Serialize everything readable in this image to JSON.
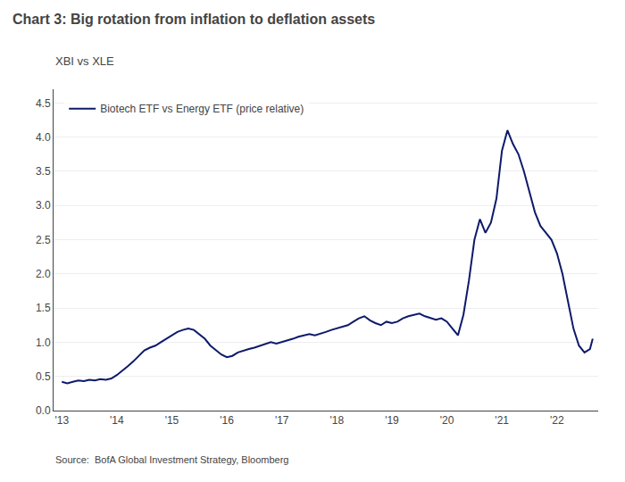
{
  "chart_data": {
    "type": "line",
    "title": "Chart 3: Big rotation from inflation to deflation assets",
    "subtitle": "XBI vs XLE",
    "source": "Source:  BofA Global Investment Strategy, Bloomberg",
    "x": [
      2013.0,
      2013.1,
      2013.2,
      2013.3,
      2013.4,
      2013.5,
      2013.6,
      2013.7,
      2013.8,
      2013.9,
      2014.0,
      2014.1,
      2014.2,
      2014.3,
      2014.4,
      2014.5,
      2014.6,
      2014.7,
      2014.8,
      2014.9,
      2015.0,
      2015.1,
      2015.2,
      2015.3,
      2015.4,
      2015.5,
      2015.6,
      2015.7,
      2015.8,
      2015.9,
      2016.0,
      2016.1,
      2016.2,
      2016.3,
      2016.4,
      2016.5,
      2016.6,
      2016.7,
      2016.8,
      2016.9,
      2017.0,
      2017.1,
      2017.2,
      2017.3,
      2017.4,
      2017.5,
      2017.6,
      2017.7,
      2017.8,
      2017.9,
      2018.0,
      2018.1,
      2018.2,
      2018.3,
      2018.4,
      2018.5,
      2018.6,
      2018.7,
      2018.8,
      2018.9,
      2019.0,
      2019.1,
      2019.2,
      2019.3,
      2019.4,
      2019.5,
      2019.6,
      2019.7,
      2019.8,
      2019.9,
      2020.0,
      2020.1,
      2020.2,
      2020.3,
      2020.4,
      2020.5,
      2020.6,
      2020.7,
      2020.8,
      2020.9,
      2021.0,
      2021.1,
      2021.2,
      2021.3,
      2021.4,
      2021.5,
      2021.6,
      2021.7,
      2021.8,
      2021.9,
      2022.0,
      2022.1,
      2022.2,
      2022.3,
      2022.4,
      2022.5,
      2022.6,
      2022.65
    ],
    "series": [
      {
        "name": "Biotech ETF vs Energy ETF (price relative)",
        "color": "#0d1a6b",
        "values": [
          0.42,
          0.4,
          0.42,
          0.44,
          0.43,
          0.45,
          0.44,
          0.46,
          0.45,
          0.47,
          0.52,
          0.58,
          0.65,
          0.72,
          0.8,
          0.88,
          0.92,
          0.95,
          1.0,
          1.05,
          1.1,
          1.15,
          1.18,
          1.2,
          1.18,
          1.12,
          1.05,
          0.95,
          0.88,
          0.82,
          0.78,
          0.8,
          0.85,
          0.88,
          0.9,
          0.92,
          0.95,
          0.97,
          1.0,
          0.98,
          1.0,
          1.02,
          1.05,
          1.08,
          1.1,
          1.12,
          1.1,
          1.12,
          1.15,
          1.18,
          1.2,
          1.22,
          1.25,
          1.3,
          1.35,
          1.38,
          1.32,
          1.28,
          1.25,
          1.3,
          1.28,
          1.3,
          1.35,
          1.38,
          1.4,
          1.42,
          1.38,
          1.35,
          1.33,
          1.35,
          1.3,
          1.2,
          1.1,
          1.4,
          1.9,
          2.5,
          2.8,
          2.6,
          2.75,
          3.1,
          3.8,
          4.1,
          3.9,
          3.75,
          3.5,
          3.2,
          2.9,
          2.7,
          2.6,
          2.5,
          2.3,
          2.0,
          1.6,
          1.2,
          0.95,
          0.85,
          0.9,
          1.05
        ]
      }
    ],
    "xlim": [
      2012.85,
      2022.75
    ],
    "xticks": [
      {
        "value": 2013,
        "label": "'13"
      },
      {
        "value": 2014,
        "label": "'14"
      },
      {
        "value": 2015,
        "label": "'15"
      },
      {
        "value": 2016,
        "label": "'16"
      },
      {
        "value": 2017,
        "label": "'17"
      },
      {
        "value": 2018,
        "label": "'18"
      },
      {
        "value": 2019,
        "label": "'19"
      },
      {
        "value": 2020,
        "label": "'20"
      },
      {
        "value": 2021,
        "label": "'21"
      },
      {
        "value": 2022,
        "label": "'22"
      }
    ],
    "ylim": [
      0.0,
      4.7
    ],
    "yticks": [
      {
        "value": 0.0,
        "label": "0.0"
      },
      0.5,
      {
        "value": 1.0,
        "label": "1.0"
      },
      1.5,
      {
        "value": 2.0,
        "label": "2.0"
      },
      2.5,
      {
        "value": 3.0,
        "label": "3.0"
      },
      3.5,
      {
        "value": 4.0,
        "label": "4.0"
      },
      4.5
    ],
    "grid": "y",
    "legend": "upper left"
  }
}
